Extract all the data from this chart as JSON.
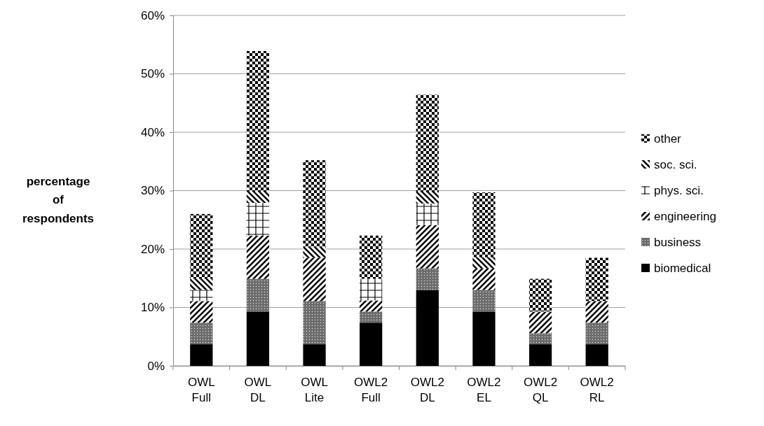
{
  "chart_data": {
    "type": "bar",
    "stacked": true,
    "ylabel": "percentage of respondents",
    "categories": [
      "OWL Full",
      "OWL DL",
      "OWL Lite",
      "OWL2 Full",
      "OWL2 DL",
      "OWL2 EL",
      "OWL2 QL",
      "OWL2 RL"
    ],
    "series": [
      {
        "name": "biomedical",
        "color": "#000000",
        "values": [
          3.7,
          9.3,
          3.7,
          7.4,
          13.0,
          9.3,
          3.7,
          3.7
        ]
      },
      {
        "name": "business",
        "color": "#6e6e6e",
        "values": [
          3.7,
          5.6,
          7.4,
          1.9,
          3.7,
          3.7,
          1.9,
          3.7
        ]
      },
      {
        "name": "engineering",
        "color": "#000000",
        "values": [
          3.7,
          7.4,
          7.4,
          1.9,
          7.4,
          3.7,
          3.7,
          3.7
        ]
      },
      {
        "name": "phys. sci.",
        "color": "#000000",
        "values": [
          1.9,
          5.6,
          0,
          3.7,
          3.7,
          0,
          0,
          0
        ]
      },
      {
        "name": "soc. sci.",
        "color": "#000000",
        "values": [
          1.9,
          1.9,
          1.9,
          0,
          1.9,
          1.9,
          0,
          0
        ]
      },
      {
        "name": "other",
        "color": "#000000",
        "values": [
          11.1,
          24.1,
          14.8,
          7.4,
          16.7,
          11.1,
          5.6,
          7.4
        ]
      }
    ],
    "ylim": [
      0,
      60
    ],
    "yticks": [
      {
        "value": 0,
        "label": "0%"
      },
      {
        "value": 10,
        "label": "10%"
      },
      {
        "value": 20,
        "label": "20%"
      },
      {
        "value": 30,
        "label": "30%"
      },
      {
        "value": 40,
        "label": "40%"
      },
      {
        "value": 50,
        "label": "50%"
      },
      {
        "value": 60,
        "label": "60%"
      }
    ],
    "grid": "y",
    "legend": "right"
  }
}
